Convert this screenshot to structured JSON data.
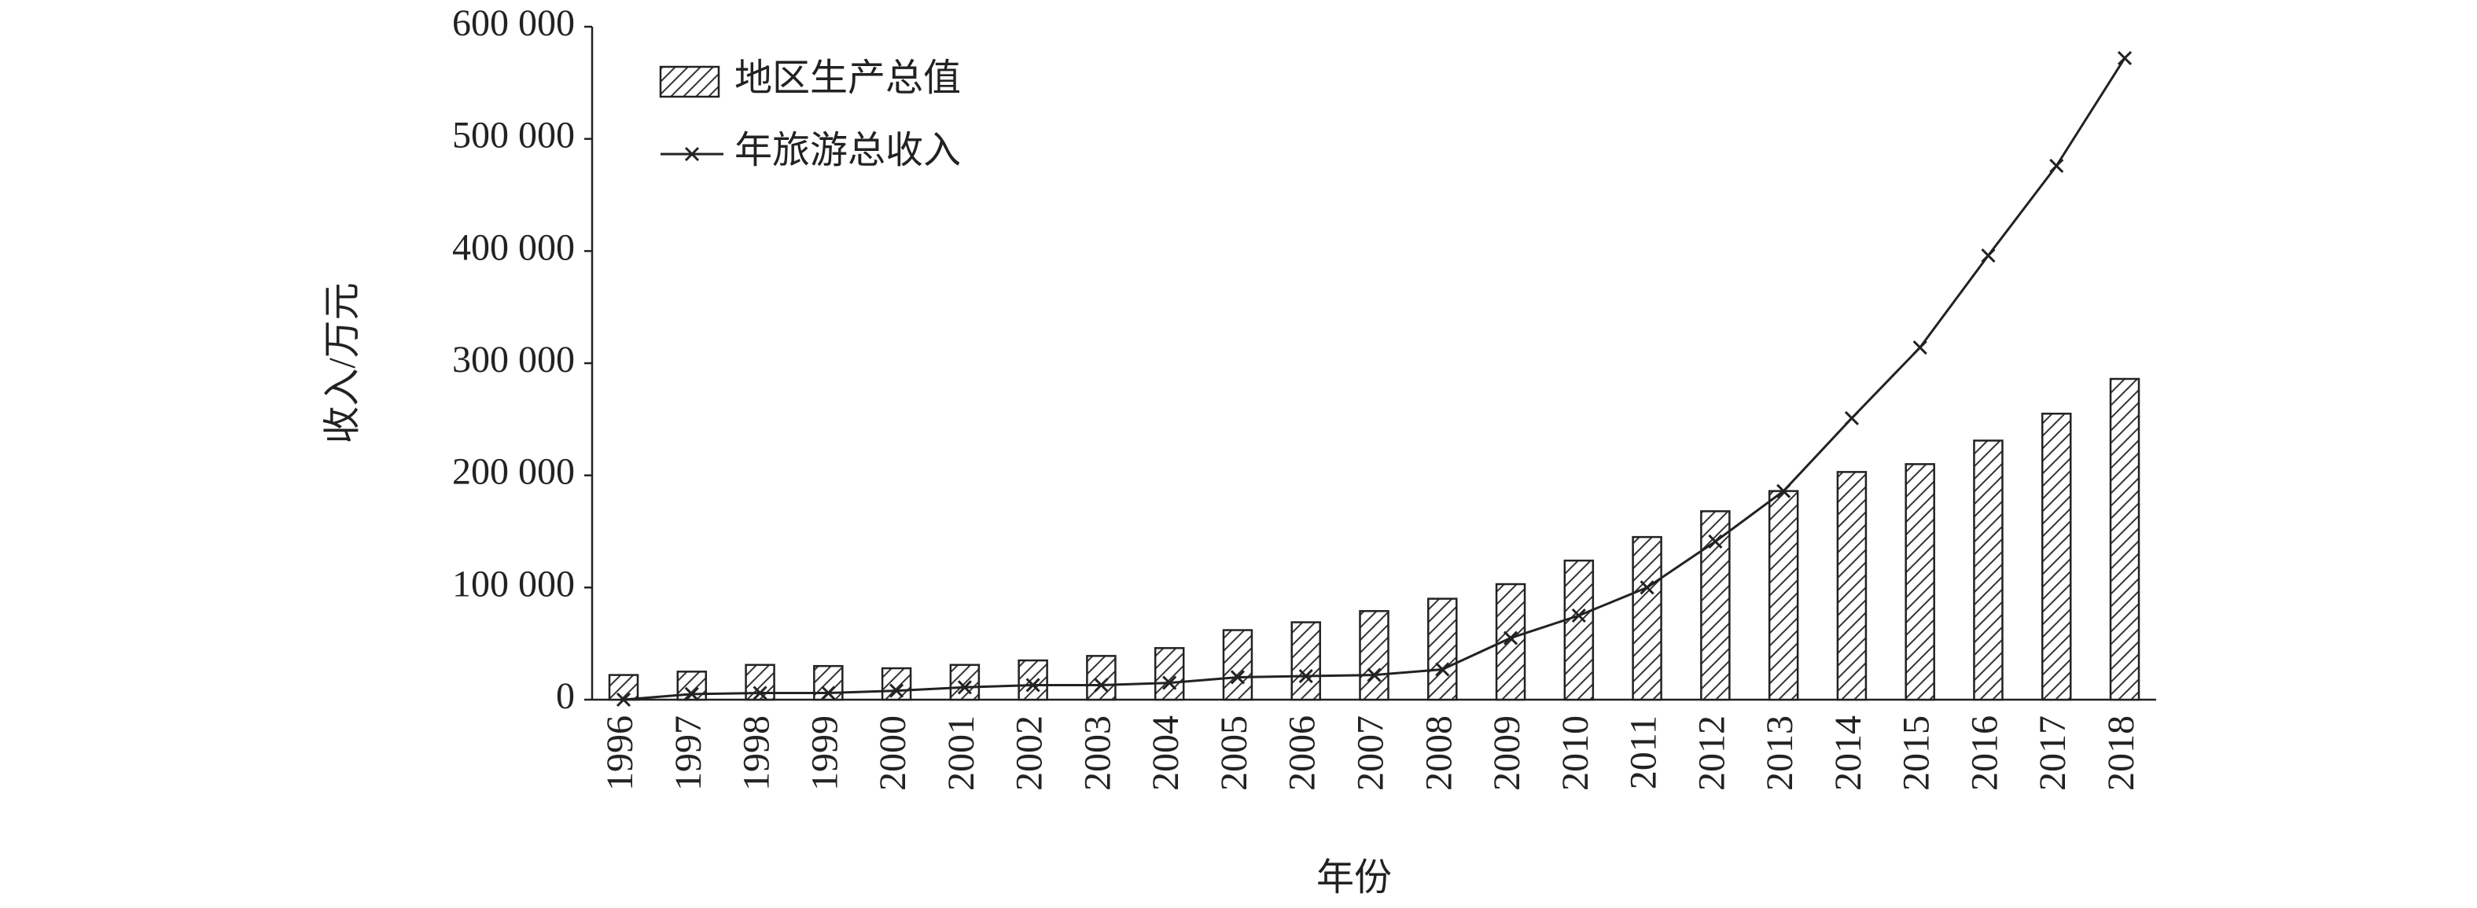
{
  "chart_data": {
    "type": "bar_line",
    "x_label": "年份",
    "y_label": "收入/万元",
    "categories": [
      "1996",
      "1997",
      "1998",
      "1999",
      "2000",
      "2001",
      "2002",
      "2003",
      "2004",
      "2005",
      "2006",
      "2007",
      "2008",
      "2009",
      "2010",
      "2011",
      "2012",
      "2013",
      "2014",
      "2015",
      "2016",
      "2017",
      "2018"
    ],
    "series": [
      {
        "name": "地区生产总值",
        "type": "bar",
        "color": "#222222",
        "hatch": true,
        "values": [
          22000,
          25000,
          31000,
          30000,
          28000,
          31000,
          35000,
          39000,
          46000,
          62000,
          69000,
          79000,
          90000,
          103000,
          124000,
          145000,
          168000,
          186000,
          203000,
          210000,
          231000,
          255000,
          286000
        ]
      },
      {
        "name": "年旅游总收入",
        "type": "line",
        "color": "#222222",
        "marker": "x",
        "values": [
          0,
          5000,
          6000,
          6000,
          8000,
          11000,
          13000,
          13000,
          15000,
          20000,
          21000,
          22000,
          27000,
          55000,
          75000,
          100000,
          141000,
          186000,
          251000,
          314000,
          396000,
          476000,
          572000
        ]
      }
    ],
    "ylim": [
      0,
      600000
    ],
    "yticks": [
      0,
      {
        "value": 100000,
        "label": "100 000"
      },
      {
        "value": 200000,
        "label": "200 000"
      },
      {
        "value": 300000,
        "label": "300 000"
      },
      {
        "value": 400000,
        "label": "400 000"
      },
      {
        "value": 500000,
        "label": "500 000"
      },
      {
        "value": 600000,
        "label": "600 000"
      }
    ],
    "grid": false,
    "legend": "upper left"
  }
}
